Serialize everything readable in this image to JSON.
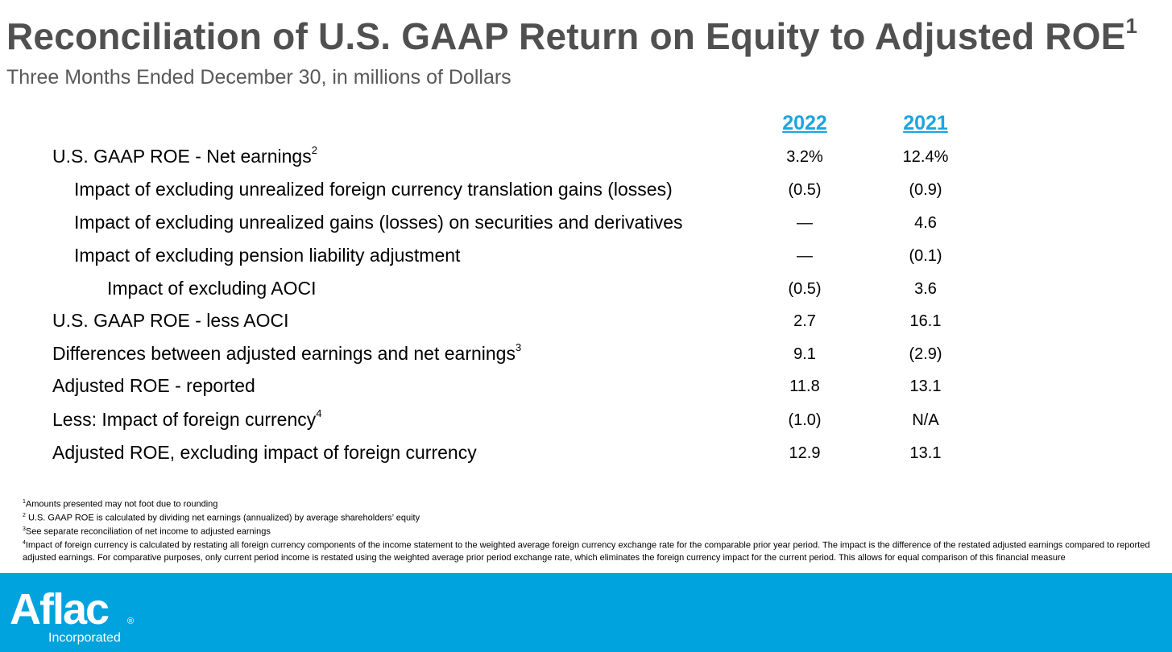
{
  "title": {
    "text": "Reconciliation of U.S. GAAP Return on Equity to Adjusted ROE",
    "sup": "1"
  },
  "subtitle": "Three Months Ended December 30, in millions of Dollars",
  "columns": [
    "2022",
    "2021"
  ],
  "rows": [
    {
      "label": "U.S. GAAP ROE - Net earnings",
      "sup": "2",
      "v2022": "3.2%",
      "v2021": "12.4%"
    },
    {
      "label": "Impact of excluding unrealized foreign currency translation gains (losses)",
      "sup": "",
      "v2022": "(0.5)",
      "v2021": "(0.9)"
    },
    {
      "label": "Impact of excluding unrealized gains (losses) on securities and derivatives",
      "sup": "",
      "v2022": "—",
      "v2021": "4.6"
    },
    {
      "label": "Impact of excluding pension liability adjustment",
      "sup": "",
      "v2022": "—",
      "v2021": "(0.1)"
    },
    {
      "label": "Impact of excluding AOCI",
      "sup": "",
      "v2022": "(0.5)",
      "v2021": "3.6"
    },
    {
      "label": "U.S. GAAP ROE - less AOCI",
      "sup": "",
      "v2022": "2.7",
      "v2021": "16.1"
    },
    {
      "label": "Differences between adjusted earnings and net earnings",
      "sup": "3",
      "v2022": "9.1",
      "v2021": "(2.9)"
    },
    {
      "label": "Adjusted ROE - reported",
      "sup": "",
      "v2022": "11.8",
      "v2021": "13.1"
    },
    {
      "label": "Less: Impact of foreign currency",
      "sup": "4",
      "v2022": "(1.0)",
      "v2021": "N/A"
    },
    {
      "label": "Adjusted ROE, excluding impact of foreign currency",
      "sup": "",
      "v2022": "12.9",
      "v2021": "13.1"
    }
  ],
  "footnotes": [
    {
      "num": "1",
      "text": "Amounts presented may not foot due to rounding"
    },
    {
      "num": "2",
      "text": " U.S. GAAP ROE is calculated by dividing net earnings (annualized) by average shareholders’ equity"
    },
    {
      "num": "3",
      "text": "See separate reconciliation of net income to adjusted earnings"
    },
    {
      "num": "4",
      "text": "Impact of foreign currency is calculated by restating all foreign currency components of the income statement to the weighted average foreign currency exchange rate for the comparable prior year period. The impact is the difference of the restated adjusted earnings compared to reported adjusted earnings. For comparative purposes, only current period income is restated using the weighted average prior period exchange rate, which eliminates the foreign currency impact for the current period. This allows for equal comparison of this financial  measure"
    }
  ],
  "brand": {
    "logo": "Aflac",
    "registered": "®",
    "tagline": "Incorporated",
    "color": "#00a3de",
    "accent": "#1ba5e0"
  }
}
